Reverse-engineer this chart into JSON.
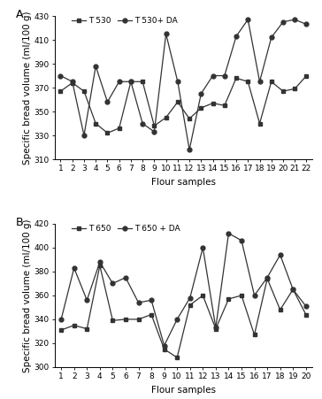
{
  "panel_A": {
    "label": "A",
    "x": [
      1,
      2,
      3,
      4,
      5,
      6,
      7,
      8,
      9,
      10,
      11,
      12,
      13,
      14,
      15,
      16,
      17,
      18,
      19,
      20,
      21,
      22
    ],
    "T530": [
      367,
      374,
      367,
      340,
      332,
      336,
      375,
      375,
      338,
      345,
      358,
      344,
      353,
      357,
      355,
      378,
      375,
      340,
      375,
      367,
      369,
      380
    ],
    "T530_DA": [
      380,
      375,
      330,
      388,
      358,
      375,
      375,
      340,
      333,
      415,
      375,
      318,
      365,
      380,
      380,
      413,
      427,
      375,
      412,
      425,
      427,
      423
    ],
    "ylabel": "Specific bread volume (ml/100 g)",
    "xlabel": "Flour samples",
    "ylim": [
      310,
      430
    ],
    "yticks": [
      310,
      330,
      350,
      370,
      390,
      410,
      430
    ],
    "legend1": "T 530",
    "legend2": "T 530+ DA"
  },
  "panel_B": {
    "label": "B",
    "x": [
      1,
      2,
      3,
      4,
      5,
      6,
      7,
      8,
      9,
      10,
      11,
      12,
      13,
      14,
      15,
      16,
      17,
      18,
      19,
      20
    ],
    "T650": [
      331,
      335,
      332,
      385,
      339,
      340,
      340,
      344,
      315,
      308,
      352,
      360,
      332,
      357,
      360,
      327,
      374,
      348,
      365,
      344
    ],
    "T650_DA": [
      340,
      383,
      356,
      388,
      370,
      375,
      354,
      356,
      318,
      340,
      358,
      400,
      333,
      412,
      406,
      360,
      375,
      394,
      365,
      351
    ],
    "ylabel": "Specific bread volume (ml/100 g)",
    "xlabel": "Flour samples",
    "ylim": [
      300,
      420
    ],
    "yticks": [
      300,
      320,
      340,
      360,
      380,
      400,
      420
    ],
    "legend1": "T 650",
    "legend2": "T 650 + DA"
  },
  "line_color": "#333333",
  "marker_square": "s",
  "marker_circle": "o",
  "marker_size": 3.5,
  "linewidth": 0.9,
  "font_size_label": 7.5,
  "font_size_tick": 6.5,
  "font_size_legend": 6.5,
  "font_size_panel": 9
}
